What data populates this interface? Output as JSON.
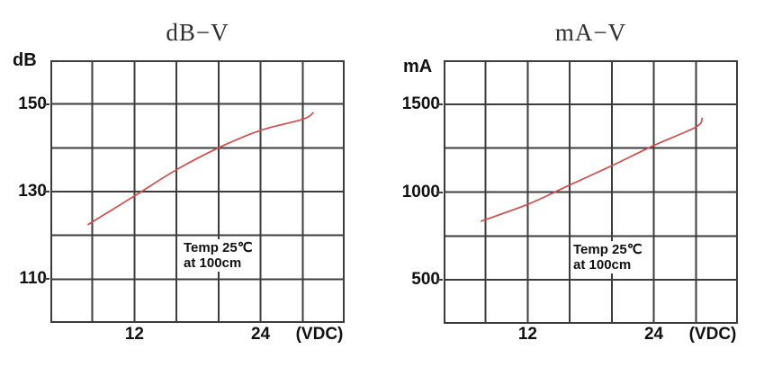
{
  "colors": {
    "curve": "#cc4e4e",
    "grid": "#3c3c3c",
    "text": "#111111",
    "title_text": "#2f2f2f"
  },
  "chart_data": [
    {
      "type": "line",
      "title": "dB−V",
      "ylabel": "dB",
      "xlabel": "(VDC)",
      "annotation": {
        "line1": "Temp 25℃",
        "line2": "at 100cm"
      },
      "xlim": [
        4,
        32
      ],
      "ylim": [
        100,
        160
      ],
      "x_grid_step": 4,
      "y_grid_step": 10,
      "grid": true,
      "legend": false,
      "x_ticks": [
        {
          "value": 12,
          "label": "12"
        },
        {
          "value": 24,
          "label": "24"
        }
      ],
      "y_ticks": [
        {
          "value": 150,
          "label": "150"
        },
        {
          "value": 130,
          "label": "130"
        },
        {
          "value": 110,
          "label": "110"
        }
      ],
      "series": [
        {
          "x": [
            7.6,
            12,
            16,
            20,
            24,
            28,
            29
          ],
          "y": [
            122.5,
            129,
            135,
            140,
            144,
            146.5,
            148
          ]
        }
      ]
    },
    {
      "type": "line",
      "title": "mA−V",
      "ylabel": "mA",
      "xlabel": "(VDC)",
      "annotation": {
        "line1": "Temp 25℃",
        "line2": "at 100cm"
      },
      "xlim": [
        4,
        32
      ],
      "ylim": [
        250,
        1750
      ],
      "x_grid_step": 4,
      "y_grid_step": 250,
      "grid": true,
      "legend": false,
      "x_ticks": [
        {
          "value": 12,
          "label": "12"
        },
        {
          "value": 24,
          "label": "24"
        }
      ],
      "y_ticks": [
        {
          "value": 1500,
          "label": "1500"
        },
        {
          "value": 1000,
          "label": "1000"
        },
        {
          "value": 500,
          "label": "500"
        }
      ],
      "series": [
        {
          "x": [
            7.6,
            12,
            16,
            20,
            24,
            28,
            28.6
          ],
          "y": [
            835,
            930,
            1040,
            1150,
            1265,
            1370,
            1420
          ]
        }
      ]
    }
  ]
}
